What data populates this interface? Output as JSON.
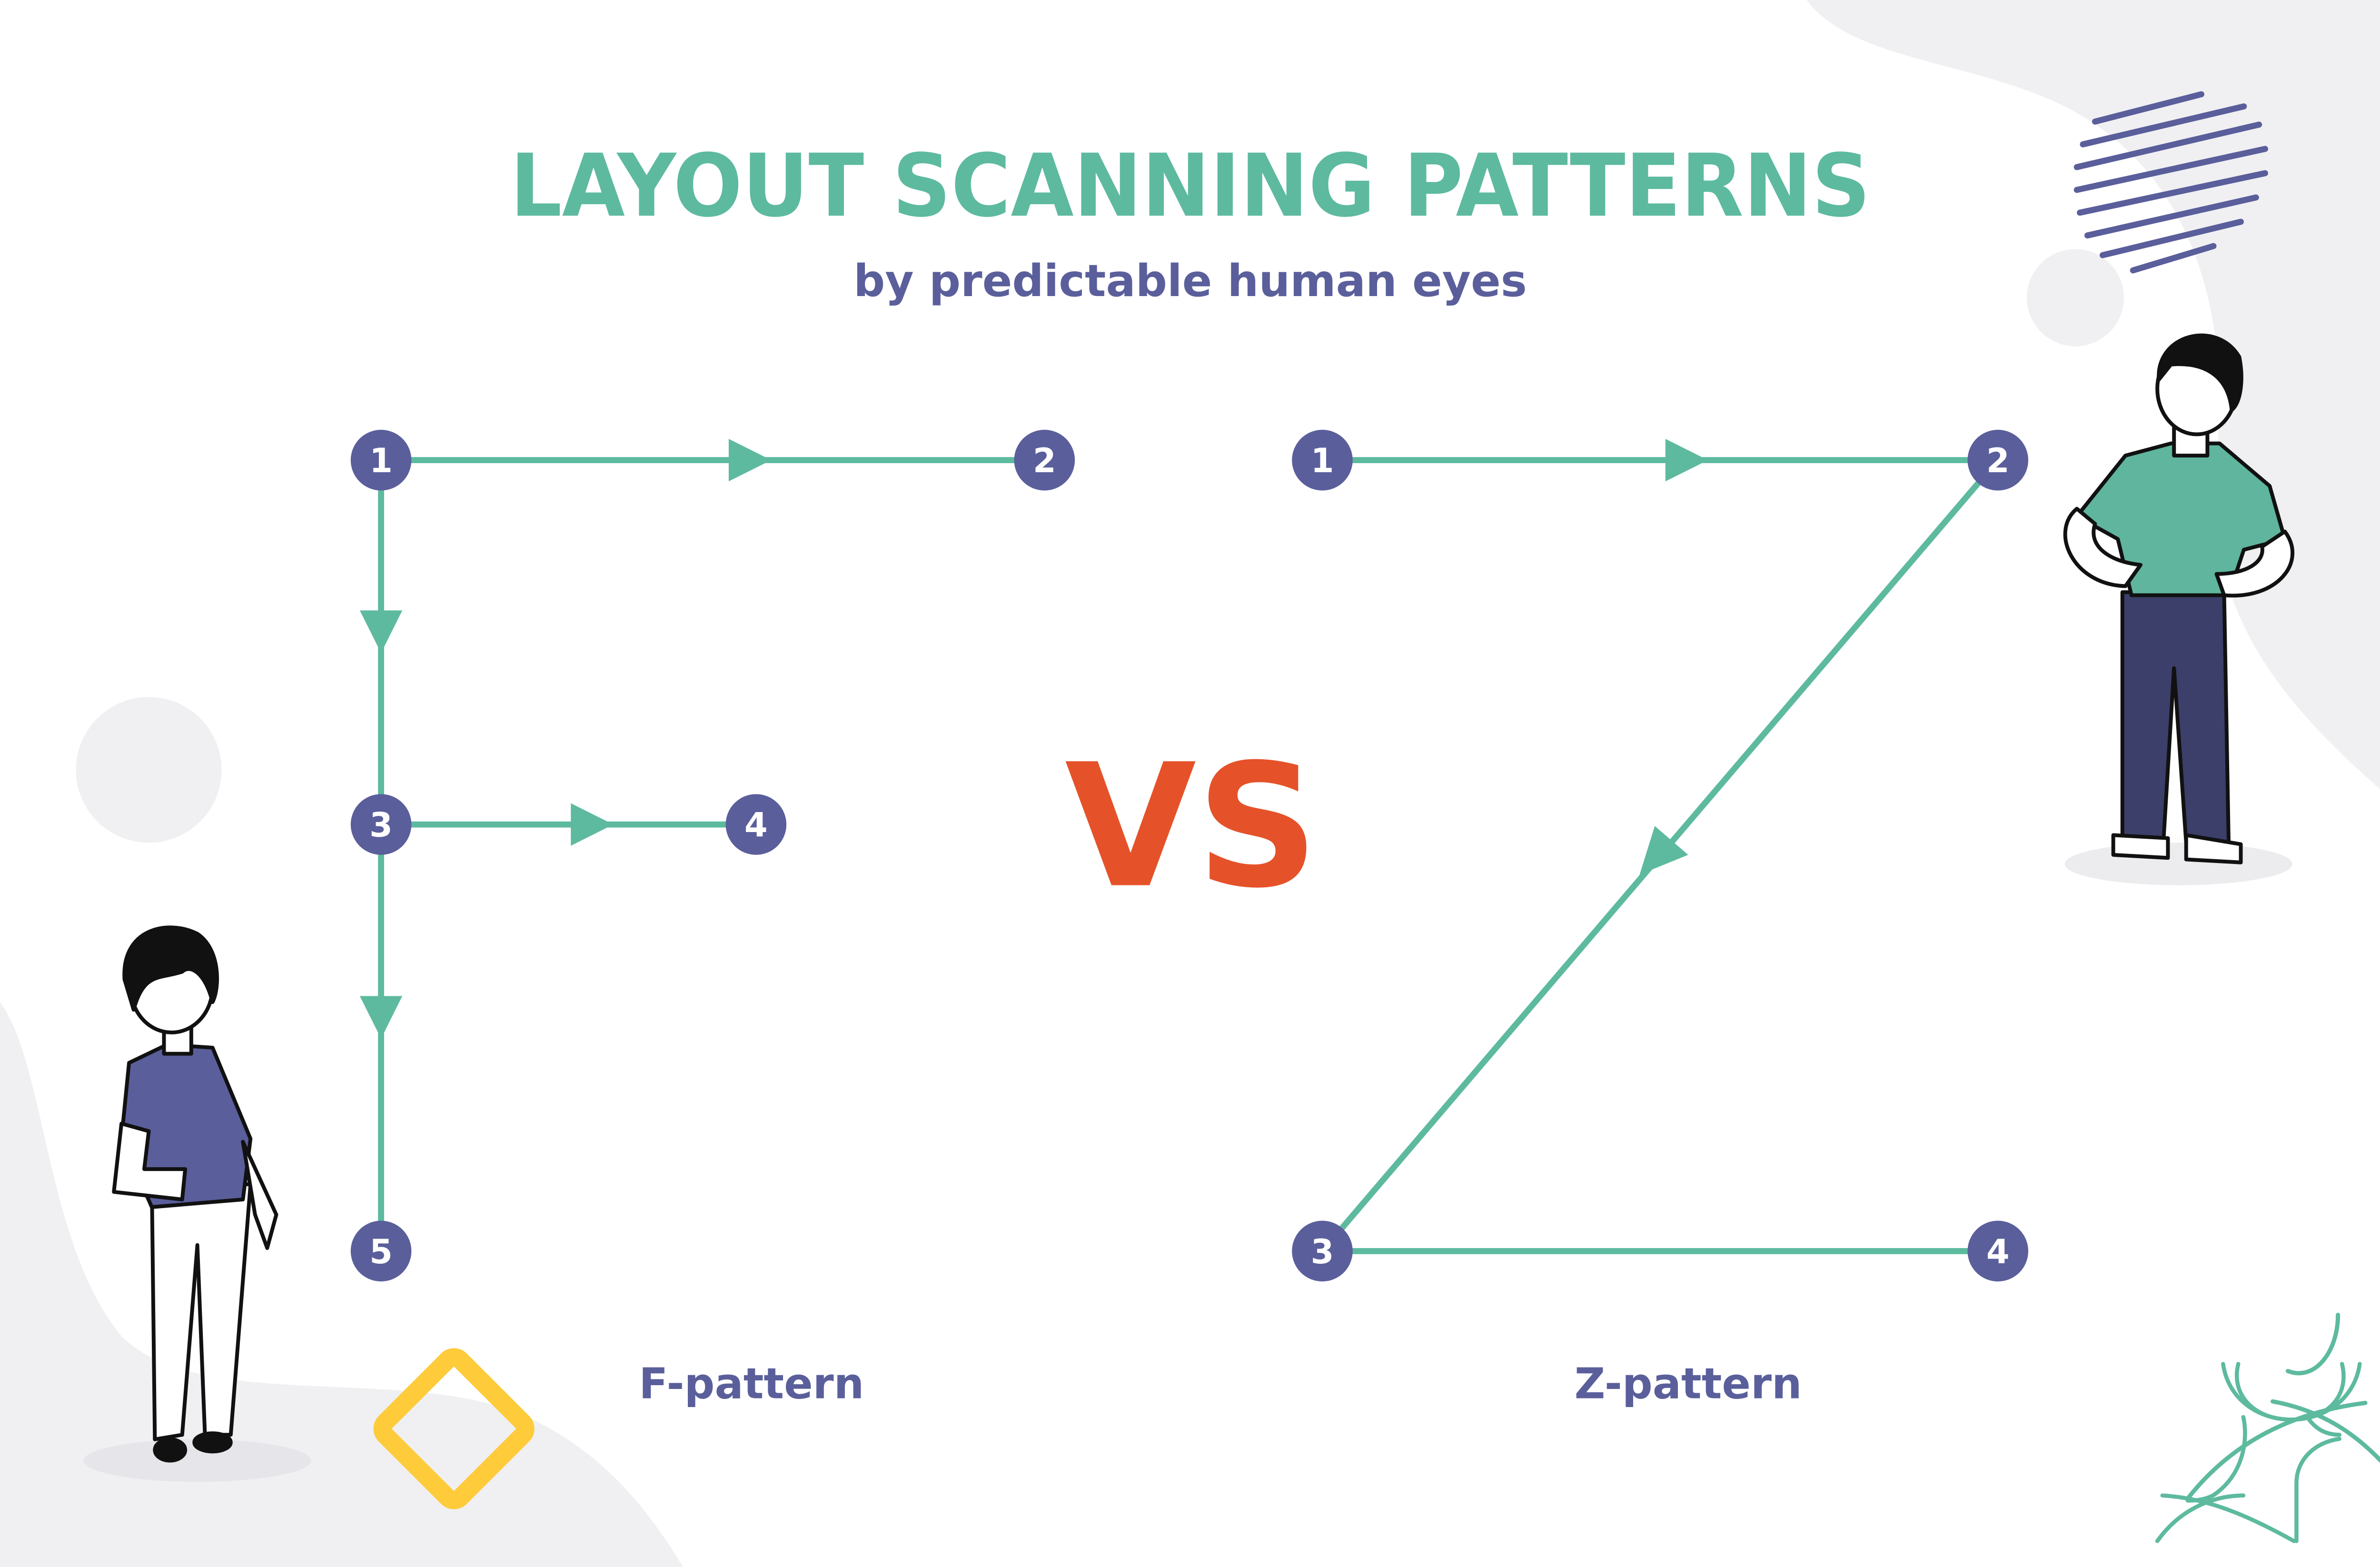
{
  "title": "LAYOUT SCANNING PATTERNS",
  "subtitle": "by predictable human eyes",
  "vs_label": "VS",
  "colors": {
    "title": "#5dba9f",
    "subtitle": "#5a5f9b",
    "node": "#5a5e9b",
    "line": "#5dba9f",
    "vs": "#e5522a",
    "blob": "#f0f0f2",
    "diamond": "#fecb3b"
  },
  "f_pattern": {
    "label": "F-pattern",
    "nodes": [
      "1",
      "2",
      "3",
      "4",
      "5"
    ]
  },
  "z_pattern": {
    "label": "Z-pattern",
    "nodes": [
      "1",
      "2",
      "3",
      "4"
    ]
  },
  "icons": [
    "deer-logo-icon",
    "yellow-diamond-shape",
    "striped-circle-shape"
  ]
}
